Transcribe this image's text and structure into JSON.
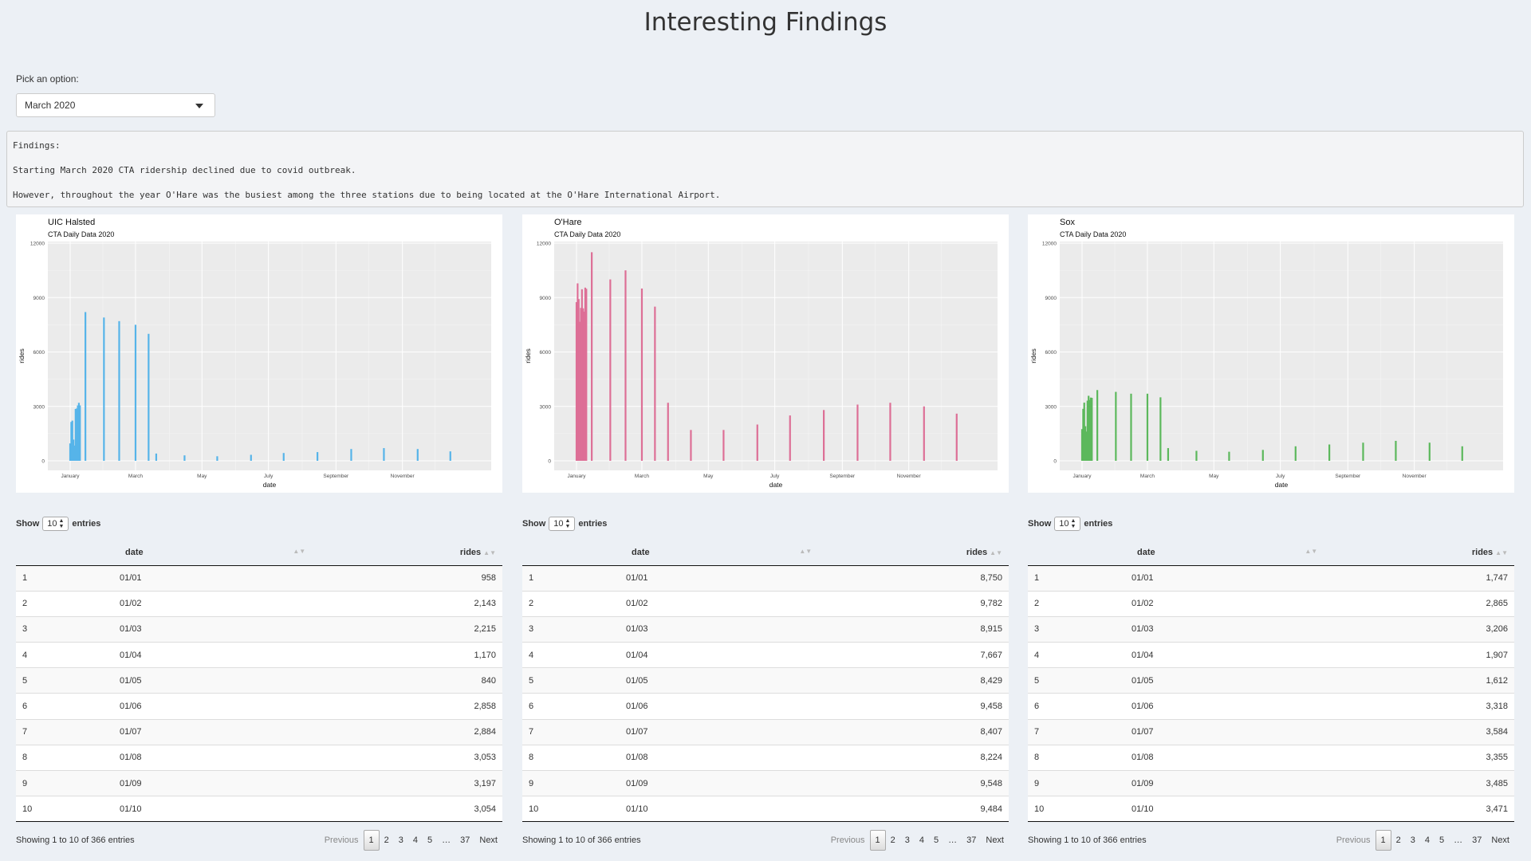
{
  "page_title": "Interesting Findings",
  "select": {
    "label": "Pick an option:",
    "value": "March 2020"
  },
  "findings": {
    "heading": "Findings:",
    "line1": "Starting March 2020 CTA ridership declined due to covid outbreak.",
    "line2": "However, throughout the year O'Hare was the busiest among the three stations due to being located at the O'Hare International Airport."
  },
  "chart_data": [
    {
      "type": "bar",
      "title": "UIC Halsted",
      "subtitle": "CTA Daily Data 2020",
      "xlabel": "date",
      "ylabel": "rides",
      "ylim": [
        0,
        12000
      ],
      "yticks": [
        "0",
        "3000",
        "6000",
        "9000",
        "12000"
      ],
      "xticks": [
        "January",
        "March",
        "May",
        "July",
        "September",
        "November"
      ],
      "color": "#56b4e9",
      "x": [
        "01/01",
        "01/02",
        "01/03",
        "01/04",
        "01/05",
        "01/06",
        "01/07",
        "01/08",
        "01/09",
        "01/10",
        "01/15",
        "02/01",
        "02/15",
        "03/01",
        "03/13",
        "03/20",
        "04/15",
        "05/15",
        "06/15",
        "07/15",
        "08/15",
        "09/15",
        "10/15",
        "11/15",
        "12/15"
      ],
      "values": [
        958,
        2143,
        2215,
        1170,
        840,
        2858,
        2884,
        3053,
        3197,
        3054,
        8200,
        7900,
        7700,
        7500,
        7000,
        400,
        300,
        250,
        330,
        430,
        480,
        650,
        700,
        650,
        520
      ]
    },
    {
      "type": "bar",
      "title": "O'Hare",
      "subtitle": "CTA Daily Data 2020",
      "xlabel": "date",
      "ylabel": "rides",
      "ylim": [
        0,
        12000
      ],
      "yticks": [
        "0",
        "3000",
        "6000",
        "9000",
        "12000"
      ],
      "xticks": [
        "January",
        "March",
        "May",
        "July",
        "September",
        "November"
      ],
      "color": "#dd6f96",
      "x": [
        "01/01",
        "01/02",
        "01/03",
        "01/04",
        "01/05",
        "01/06",
        "01/07",
        "01/08",
        "01/09",
        "01/10",
        "01/15",
        "02/01",
        "02/15",
        "03/01",
        "03/13",
        "03/25",
        "04/15",
        "05/15",
        "06/15",
        "07/15",
        "08/15",
        "09/15",
        "10/15",
        "11/15",
        "12/15"
      ],
      "values": [
        8750,
        9782,
        8915,
        7667,
        8429,
        9458,
        8407,
        8224,
        9548,
        9484,
        11500,
        10000,
        10500,
        9500,
        8500,
        3200,
        1700,
        1700,
        2000,
        2500,
        2800,
        3100,
        3200,
        3000,
        2600
      ]
    },
    {
      "type": "bar",
      "title": "Sox",
      "subtitle": "CTA Daily Data 2020",
      "xlabel": "date",
      "ylabel": "rides",
      "ylim": [
        0,
        12000
      ],
      "yticks": [
        "0",
        "3000",
        "6000",
        "9000",
        "12000"
      ],
      "xticks": [
        "January",
        "March",
        "May",
        "July",
        "September",
        "November"
      ],
      "color": "#5cb85c",
      "x": [
        "01/01",
        "01/02",
        "01/03",
        "01/04",
        "01/05",
        "01/06",
        "01/07",
        "01/08",
        "01/09",
        "01/10",
        "01/15",
        "02/01",
        "02/15",
        "03/01",
        "03/13",
        "03/20",
        "04/15",
        "05/15",
        "06/15",
        "07/15",
        "08/15",
        "09/15",
        "10/15",
        "11/15",
        "12/15"
      ],
      "values": [
        1747,
        2865,
        3206,
        1907,
        1612,
        3318,
        3584,
        3355,
        3485,
        3471,
        3900,
        3800,
        3700,
        3700,
        3500,
        700,
        550,
        500,
        600,
        800,
        900,
        1000,
        1100,
        1000,
        800
      ]
    }
  ],
  "tables": [
    {
      "show_label": "Show",
      "entries_label": "entries",
      "page_size": "10",
      "columns": [
        "",
        "date",
        "rides"
      ],
      "rows": [
        [
          "1",
          "01/01",
          "958"
        ],
        [
          "2",
          "01/02",
          "2,143"
        ],
        [
          "3",
          "01/03",
          "2,215"
        ],
        [
          "4",
          "01/04",
          "1,170"
        ],
        [
          "5",
          "01/05",
          "840"
        ],
        [
          "6",
          "01/06",
          "2,858"
        ],
        [
          "7",
          "01/07",
          "2,884"
        ],
        [
          "8",
          "01/08",
          "3,053"
        ],
        [
          "9",
          "01/09",
          "3,197"
        ],
        [
          "10",
          "01/10",
          "3,054"
        ]
      ],
      "info": "Showing 1 to 10 of 366 entries",
      "pager": [
        "Previous",
        "1",
        "2",
        "3",
        "4",
        "5",
        "…",
        "37",
        "Next"
      ]
    },
    {
      "show_label": "Show",
      "entries_label": "entries",
      "page_size": "10",
      "columns": [
        "",
        "date",
        "rides"
      ],
      "rows": [
        [
          "1",
          "01/01",
          "8,750"
        ],
        [
          "2",
          "01/02",
          "9,782"
        ],
        [
          "3",
          "01/03",
          "8,915"
        ],
        [
          "4",
          "01/04",
          "7,667"
        ],
        [
          "5",
          "01/05",
          "8,429"
        ],
        [
          "6",
          "01/06",
          "9,458"
        ],
        [
          "7",
          "01/07",
          "8,407"
        ],
        [
          "8",
          "01/08",
          "8,224"
        ],
        [
          "9",
          "01/09",
          "9,548"
        ],
        [
          "10",
          "01/10",
          "9,484"
        ]
      ],
      "info": "Showing 1 to 10 of 366 entries",
      "pager": [
        "Previous",
        "1",
        "2",
        "3",
        "4",
        "5",
        "…",
        "37",
        "Next"
      ]
    },
    {
      "show_label": "Show",
      "entries_label": "entries",
      "page_size": "10",
      "columns": [
        "",
        "date",
        "rides"
      ],
      "rows": [
        [
          "1",
          "01/01",
          "1,747"
        ],
        [
          "2",
          "01/02",
          "2,865"
        ],
        [
          "3",
          "01/03",
          "3,206"
        ],
        [
          "4",
          "01/04",
          "1,907"
        ],
        [
          "5",
          "01/05",
          "1,612"
        ],
        [
          "6",
          "01/06",
          "3,318"
        ],
        [
          "7",
          "01/07",
          "3,584"
        ],
        [
          "8",
          "01/08",
          "3,355"
        ],
        [
          "9",
          "01/09",
          "3,485"
        ],
        [
          "10",
          "01/10",
          "3,471"
        ]
      ],
      "info": "Showing 1 to 10 of 366 entries",
      "pager": [
        "Previous",
        "1",
        "2",
        "3",
        "4",
        "5",
        "…",
        "37",
        "Next"
      ]
    }
  ]
}
